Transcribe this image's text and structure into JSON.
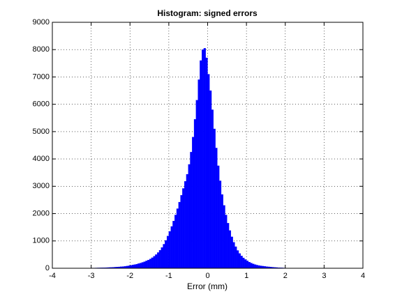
{
  "chart_data": {
    "type": "histogram",
    "title": "Histogram: signed errors",
    "x_label": "Error (mm)",
    "color": "#0000ff",
    "grid": true,
    "bins": [
      -3,
      -2.95,
      -2.9,
      -2.85,
      -2.8,
      -2.75,
      -2.7,
      -2.65,
      -2.6,
      -2.55,
      -2.5,
      -2.45,
      -2.4,
      -2.35,
      -2.3,
      -2.25,
      -2.2,
      -2.15,
      -2.1,
      -2.05,
      -2,
      -1.95,
      -1.9,
      -1.85,
      -1.8,
      -1.75,
      -1.7,
      -1.65,
      -1.6,
      -1.55,
      -1.5,
      -1.45,
      -1.4,
      -1.35,
      -1.3,
      -1.25,
      -1.2,
      -1.15,
      -1.1,
      -1.05,
      -1,
      -0.95,
      -0.9,
      -0.85,
      -0.8,
      -0.75,
      -0.7,
      -0.65,
      -0.6,
      -0.55,
      -0.5,
      -0.45,
      -0.4,
      -0.35,
      -0.3,
      -0.25,
      -0.2,
      -0.15,
      -0.1,
      -0.05,
      0,
      0.05,
      0.1,
      0.15,
      0.2,
      0.25,
      0.3,
      0.35,
      0.4,
      0.45,
      0.5,
      0.55,
      0.6,
      0.65,
      0.7,
      0.75,
      0.8,
      0.85,
      0.9,
      0.95,
      1,
      1.05,
      1.1,
      1.15,
      1.2,
      1.25,
      1.3,
      1.35,
      1.4,
      1.45,
      1.5,
      1.55,
      1.6,
      1.65,
      1.7,
      1.75,
      1.8,
      1.85,
      1.9,
      1.95,
      2
    ],
    "values": [
      10,
      10,
      12,
      14,
      15,
      17,
      19,
      22,
      25,
      28,
      32,
      36,
      40,
      45,
      50,
      56,
      62,
      70,
      80,
      90,
      105,
      120,
      135,
      150,
      170,
      190,
      215,
      240,
      270,
      300,
      340,
      385,
      440,
      500,
      575,
      660,
      760,
      880,
      1020,
      1180,
      1350,
      1530,
      1730,
      1950,
      2180,
      2420,
      2670,
      2920,
      3180,
      3440,
      3800,
      4250,
      4800,
      5450,
      6150,
      6900,
      7600,
      8000,
      8050,
      7700,
      7100,
      6500,
      5800,
      5100,
      4400,
      3750,
      3200,
      2700,
      2300,
      1950,
      1650,
      1380,
      1150,
      950,
      790,
      650,
      540,
      450,
      380,
      320,
      270,
      225,
      190,
      160,
      135,
      115,
      100,
      88,
      78,
      68,
      60,
      52,
      45,
      38,
      32,
      27,
      22,
      18,
      15,
      12
    ],
    "xlim": [
      -4,
      4
    ],
    "xticks": [
      -4,
      -3,
      -2,
      -1,
      0,
      1,
      2,
      3,
      4
    ],
    "ylim": [
      0,
      9000
    ],
    "yticks": [
      0,
      1000,
      2000,
      3000,
      4000,
      5000,
      6000,
      7000,
      8000,
      9000
    ]
  }
}
